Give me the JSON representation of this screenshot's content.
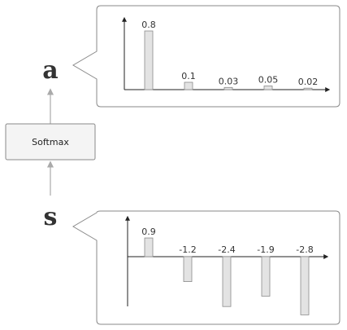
{
  "labels": {
    "output_var": "a",
    "input_var": "s",
    "function_box": "Softmax"
  },
  "colors": {
    "bar_fill": "#e3e3e3",
    "bar_stroke": "#8a8a8a",
    "axis": "#222222",
    "panel_border": "#8a8a8a",
    "connector": "#aaaaaa",
    "function_box_fill": "#f4f4f4"
  },
  "chart_data": [
    {
      "type": "bar",
      "title": "",
      "values": [
        0.8,
        0.1,
        0.03,
        0.05,
        0.02
      ],
      "value_labels": [
        "0.8",
        "0.1",
        "0.03",
        "0.05",
        "0.02"
      ]
    },
    {
      "type": "bar",
      "title": "",
      "values": [
        0.9,
        -1.2,
        -2.4,
        -1.9,
        -2.8
      ],
      "value_labels": [
        "0.9",
        "-1.2",
        "-2.4",
        "-1.9",
        "-2.8"
      ]
    }
  ]
}
